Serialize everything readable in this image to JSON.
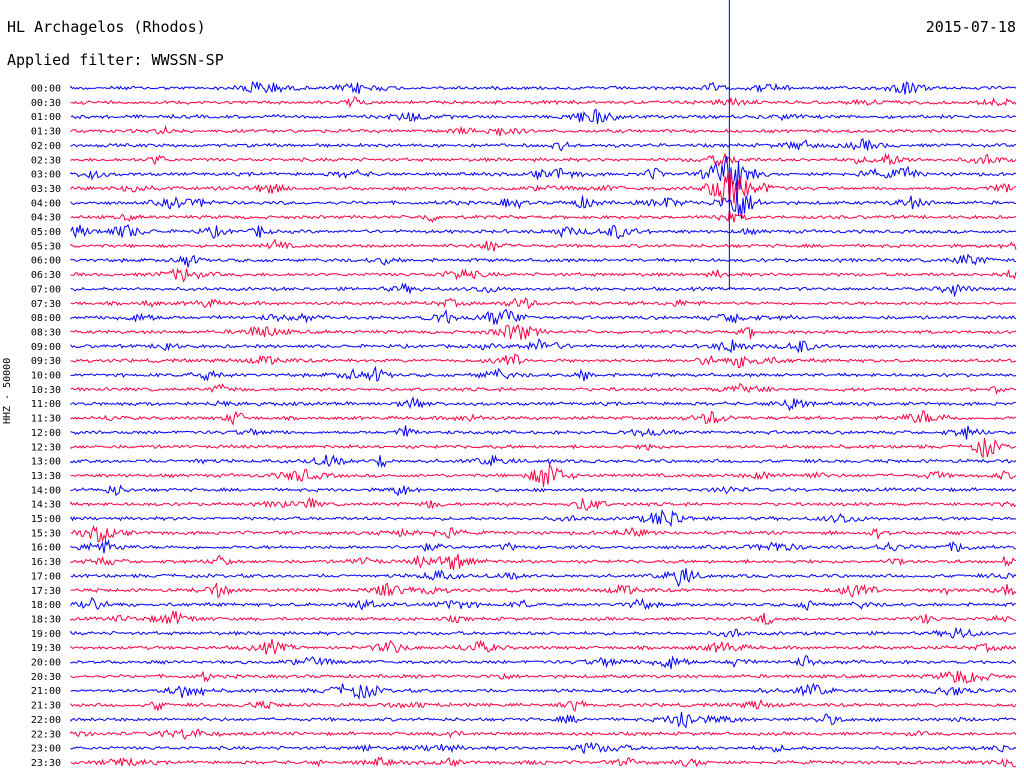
{
  "header": {
    "station": "HL Archagelos (Rhodos)",
    "date": "2015-07-18",
    "filter": "Applied filter: WWSSN-SP"
  },
  "side_label": "HHZ - 50000",
  "colors": {
    "even_trace": "#0000ff",
    "odd_trace": "#ff0040",
    "marker": "#0000ff",
    "background": "#ffffff"
  },
  "chart_data": {
    "type": "line",
    "title": "HL Archagelos (Rhodos)",
    "rows": [
      "00:00",
      "00:30",
      "01:00",
      "01:30",
      "02:00",
      "02:30",
      "03:00",
      "03:30",
      "04:00",
      "04:30",
      "05:00",
      "05:30",
      "06:00",
      "06:30",
      "07:00",
      "07:30",
      "08:00",
      "08:30",
      "09:00",
      "09:30",
      "10:00",
      "10:30",
      "11:00",
      "11:30",
      "12:00",
      "12:30",
      "13:00",
      "13:30",
      "14:00",
      "14:30",
      "15:00",
      "15:30",
      "16:00",
      "16:30",
      "17:00",
      "17:30",
      "18:00",
      "18:30",
      "19:00",
      "19:30",
      "20:00",
      "20:30",
      "21:00",
      "21:30",
      "22:00",
      "22:30",
      "23:00",
      "23:30"
    ],
    "row_minutes": 30,
    "grid": false,
    "events": [
      {
        "row": "00:30",
        "minute": 20.9,
        "amplitude": 4,
        "kind": "P-onset"
      },
      {
        "row": "03:00",
        "minute": 20.9,
        "amplitude": 30,
        "kind": "teleseism"
      },
      {
        "row": "03:30",
        "minute": 20.9,
        "amplitude": 28,
        "kind": "teleseism"
      },
      {
        "row": "04:00",
        "minute": 21.2,
        "amplitude": 22,
        "kind": "teleseism"
      },
      {
        "row": "13:30",
        "minute": 15.2,
        "amplitude": 14,
        "kind": "local"
      }
    ]
  }
}
